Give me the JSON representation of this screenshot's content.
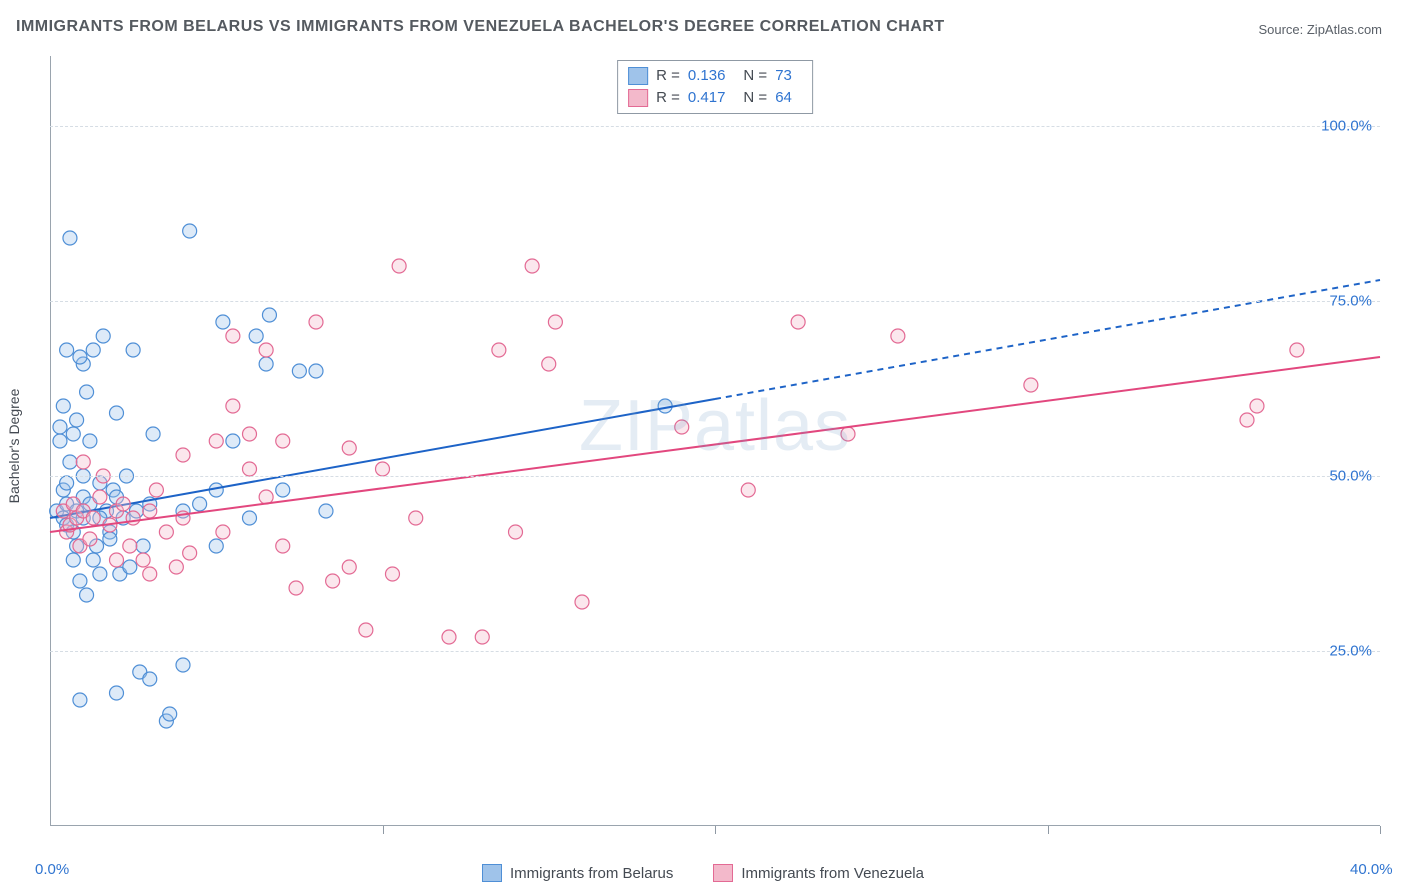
{
  "title": "IMMIGRANTS FROM BELARUS VS IMMIGRANTS FROM VENEZUELA BACHELOR'S DEGREE CORRELATION CHART",
  "source_label": "Source: ZipAtlas.com",
  "watermark": "ZIPatlas",
  "ylabel": "Bachelor's Degree",
  "chart": {
    "type": "scatter-with-trendlines",
    "background_color": "#ffffff",
    "grid_color": "#d6dde4",
    "axis_color": "#9aa4ae",
    "tick_label_color": "#2f74d0",
    "title_color": "#555a60",
    "title_fontsize": 16,
    "label_fontsize": 14,
    "xlim": [
      0,
      40
    ],
    "ylim": [
      0,
      110
    ],
    "y_gridlines": [
      25,
      50,
      75,
      100
    ],
    "ytick_labels": [
      "25.0%",
      "50.0%",
      "75.0%",
      "100.0%"
    ],
    "xticks": [
      0,
      10,
      20,
      30,
      40
    ],
    "xtick_labels_shown": {
      "0": "0.0%",
      "40": "40.0%"
    },
    "marker_radius": 7,
    "marker_fill_opacity": 0.35,
    "marker_stroke_width": 1.2,
    "series": [
      {
        "id": "belarus",
        "name": "Immigrants from Belarus",
        "color_fill": "#9fc3ea",
        "color_stroke": "#4f8fd6",
        "R": "0.136",
        "N": "73",
        "trend": {
          "solid": {
            "x1": 0,
            "y1": 44,
            "x2": 20,
            "y2": 61
          },
          "dashed": {
            "x1": 20,
            "y1": 61,
            "x2": 40,
            "y2": 78
          },
          "line_color": "#1d63c7",
          "line_width": 2,
          "dash": "6 5"
        },
        "points": [
          [
            0.2,
            45
          ],
          [
            0.3,
            55
          ],
          [
            0.3,
            57
          ],
          [
            0.4,
            44
          ],
          [
            0.4,
            48
          ],
          [
            0.4,
            60
          ],
          [
            0.5,
            43
          ],
          [
            0.5,
            46
          ],
          [
            0.5,
            49
          ],
          [
            0.5,
            68
          ],
          [
            0.6,
            84
          ],
          [
            0.6,
            52
          ],
          [
            0.7,
            38
          ],
          [
            0.7,
            42
          ],
          [
            0.7,
            56
          ],
          [
            0.8,
            40
          ],
          [
            0.8,
            45
          ],
          [
            0.8,
            58
          ],
          [
            0.9,
            18
          ],
          [
            0.9,
            35
          ],
          [
            1.0,
            44
          ],
          [
            1.0,
            47
          ],
          [
            1.0,
            50
          ],
          [
            1.1,
            33
          ],
          [
            1.1,
            62
          ],
          [
            1.2,
            46
          ],
          [
            1.2,
            55
          ],
          [
            1.3,
            38
          ],
          [
            1.3,
            68
          ],
          [
            1.4,
            40
          ],
          [
            1.5,
            36
          ],
          [
            1.5,
            49
          ],
          [
            1.6,
            70
          ],
          [
            1.7,
            45
          ],
          [
            1.8,
            42
          ],
          [
            1.8,
            41
          ],
          [
            1.9,
            48
          ],
          [
            2.0,
            59
          ],
          [
            2.0,
            47
          ],
          [
            2.1,
            36
          ],
          [
            2.2,
            44
          ],
          [
            2.3,
            50
          ],
          [
            2.4,
            37
          ],
          [
            2.5,
            68
          ],
          [
            2.6,
            45
          ],
          [
            2.7,
            22
          ],
          [
            2.8,
            40
          ],
          [
            3.0,
            21
          ],
          [
            3.0,
            46
          ],
          [
            3.1,
            56
          ],
          [
            3.5,
            15
          ],
          [
            3.6,
            16
          ],
          [
            4.0,
            23
          ],
          [
            4.0,
            45
          ],
          [
            4.2,
            85
          ],
          [
            4.5,
            46
          ],
          [
            5.0,
            48
          ],
          [
            5.0,
            40
          ],
          [
            5.2,
            72
          ],
          [
            5.5,
            55
          ],
          [
            6.0,
            44
          ],
          [
            6.2,
            70
          ],
          [
            6.5,
            66
          ],
          [
            6.6,
            73
          ],
          [
            7.0,
            48
          ],
          [
            7.5,
            65
          ],
          [
            8.0,
            65
          ],
          [
            8.3,
            45
          ],
          [
            2.0,
            19
          ],
          [
            1.0,
            66
          ],
          [
            0.9,
            67
          ],
          [
            1.5,
            44
          ],
          [
            18.5,
            60
          ]
        ]
      },
      {
        "id": "venezuela",
        "name": "Immigrants from Venezuela",
        "color_fill": "#f3b9cb",
        "color_stroke": "#e36a94",
        "R": "0.417",
        "N": "64",
        "trend": {
          "solid": {
            "x1": 0,
            "y1": 42,
            "x2": 40,
            "y2": 67
          },
          "dashed": null,
          "line_color": "#e2477e",
          "line_width": 2
        },
        "points": [
          [
            0.4,
            45
          ],
          [
            0.5,
            42
          ],
          [
            0.6,
            43
          ],
          [
            0.7,
            46
          ],
          [
            0.8,
            44
          ],
          [
            0.9,
            40
          ],
          [
            1.0,
            45
          ],
          [
            1.0,
            52
          ],
          [
            1.2,
            41
          ],
          [
            1.3,
            44
          ],
          [
            1.5,
            47
          ],
          [
            1.6,
            50
          ],
          [
            1.8,
            43
          ],
          [
            2.0,
            45
          ],
          [
            2.0,
            38
          ],
          [
            2.2,
            46
          ],
          [
            2.4,
            40
          ],
          [
            2.5,
            44
          ],
          [
            2.8,
            38
          ],
          [
            3.0,
            45
          ],
          [
            3.0,
            36
          ],
          [
            3.2,
            48
          ],
          [
            3.5,
            42
          ],
          [
            3.8,
            37
          ],
          [
            4.0,
            53
          ],
          [
            4.0,
            44
          ],
          [
            4.2,
            39
          ],
          [
            5.0,
            55
          ],
          [
            5.2,
            42
          ],
          [
            5.5,
            60
          ],
          [
            5.5,
            70
          ],
          [
            6.0,
            51
          ],
          [
            6.0,
            56
          ],
          [
            6.5,
            47
          ],
          [
            6.5,
            68
          ],
          [
            7.0,
            40
          ],
          [
            7.4,
            34
          ],
          [
            8.0,
            72
          ],
          [
            8.5,
            35
          ],
          [
            9.0,
            54
          ],
          [
            9.0,
            37
          ],
          [
            9.5,
            28
          ],
          [
            10.0,
            51
          ],
          [
            10.3,
            36
          ],
          [
            10.5,
            80
          ],
          [
            11.0,
            44
          ],
          [
            12.0,
            27
          ],
          [
            13.0,
            27
          ],
          [
            13.5,
            68
          ],
          [
            14.0,
            42
          ],
          [
            14.5,
            80
          ],
          [
            15.0,
            66
          ],
          [
            15.2,
            72
          ],
          [
            16.0,
            32
          ],
          [
            19.0,
            57
          ],
          [
            21.0,
            48
          ],
          [
            22.5,
            72
          ],
          [
            24.0,
            56
          ],
          [
            25.5,
            70
          ],
          [
            29.5,
            63
          ],
          [
            36.0,
            58
          ],
          [
            36.3,
            60
          ],
          [
            37.5,
            68
          ],
          [
            7.0,
            55
          ]
        ]
      }
    ]
  }
}
